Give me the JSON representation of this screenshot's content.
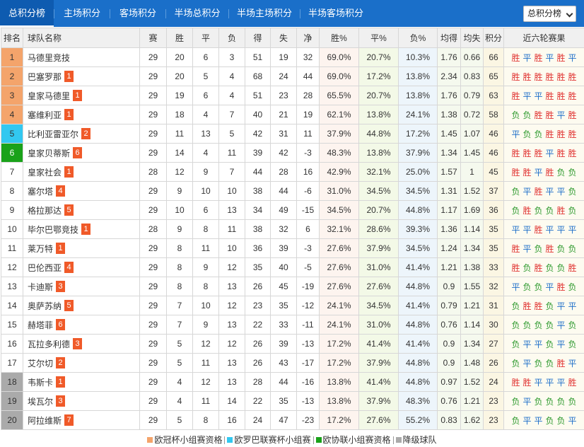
{
  "tabs": [
    "总积分榜",
    "主场积分",
    "客场积分",
    "半场总积分",
    "半场主场积分",
    "半场客场积分"
  ],
  "select": {
    "value": "总积分榜"
  },
  "headers": [
    "排名",
    "球队名称",
    "赛",
    "胜",
    "平",
    "负",
    "得",
    "失",
    "净",
    "胜%",
    "平%",
    "负%",
    "均得",
    "均失",
    "积分",
    "近六轮赛果"
  ],
  "results_map": {
    "W": "胜",
    "D": "平",
    "L": "负"
  },
  "colors": {
    "header_bar": "#1a6fc9",
    "ucl": "#f4a46b",
    "uel": "#32c8f0",
    "uecl": "#1aa21a",
    "relegation": "#aaaaaa",
    "badge": "#f05a29",
    "win": "#e0312f",
    "draw": "#1f6fc9",
    "loss": "#2e9a2e"
  },
  "rows": [
    {
      "rank": "1",
      "zone": "ucl",
      "team": "马德里竞技",
      "badge": "",
      "p": "29",
      "w": "20",
      "d": "6",
      "l": "3",
      "gf": "51",
      "ga": "19",
      "gd": "32",
      "wp": "69.0%",
      "dp": "20.7%",
      "lp": "10.3%",
      "avgf": "1.76",
      "avga": "0.66",
      "pts": "66",
      "recent": "WDWDWD"
    },
    {
      "rank": "2",
      "zone": "ucl",
      "team": "巴塞罗那",
      "badge": "1",
      "p": "29",
      "w": "20",
      "d": "5",
      "l": "4",
      "gf": "68",
      "ga": "24",
      "gd": "44",
      "wp": "69.0%",
      "dp": "17.2%",
      "lp": "13.8%",
      "avgf": "2.34",
      "avga": "0.83",
      "pts": "65",
      "recent": "WWWWWW"
    },
    {
      "rank": "3",
      "zone": "ucl",
      "team": "皇家马德里",
      "badge": "1",
      "p": "29",
      "w": "19",
      "d": "6",
      "l": "4",
      "gf": "51",
      "ga": "23",
      "gd": "28",
      "wp": "65.5%",
      "dp": "20.7%",
      "lp": "13.8%",
      "avgf": "1.76",
      "avga": "0.79",
      "pts": "63",
      "recent": "WDDWWW"
    },
    {
      "rank": "4",
      "zone": "ucl",
      "team": "塞维利亚",
      "badge": "1",
      "p": "29",
      "w": "18",
      "d": "4",
      "l": "7",
      "gf": "40",
      "ga": "21",
      "gd": "19",
      "wp": "62.1%",
      "dp": "13.8%",
      "lp": "24.1%",
      "avgf": "1.38",
      "avga": "0.72",
      "pts": "58",
      "recent": "LLWWDW"
    },
    {
      "rank": "5",
      "zone": "uel",
      "team": "比利亚雷亚尔",
      "badge": "2",
      "p": "29",
      "w": "11",
      "d": "13",
      "l": "5",
      "gf": "42",
      "ga": "31",
      "gd": "11",
      "wp": "37.9%",
      "dp": "44.8%",
      "lp": "17.2%",
      "avgf": "1.45",
      "avga": "1.07",
      "pts": "46",
      "recent": "DLLWWW"
    },
    {
      "rank": "6",
      "zone": "uecl",
      "team": "皇家贝蒂斯",
      "badge": "6",
      "p": "29",
      "w": "14",
      "d": "4",
      "l": "11",
      "gf": "39",
      "ga": "42",
      "gd": "-3",
      "wp": "48.3%",
      "dp": "13.8%",
      "lp": "37.9%",
      "avgf": "1.34",
      "avga": "1.45",
      "pts": "46",
      "recent": "WWWDWW"
    },
    {
      "rank": "7",
      "zone": "",
      "team": "皇家社会",
      "badge": "1",
      "p": "28",
      "w": "12",
      "d": "9",
      "l": "7",
      "gf": "44",
      "ga": "28",
      "gd": "16",
      "wp": "42.9%",
      "dp": "32.1%",
      "lp": "25.0%",
      "avgf": "1.57",
      "avga": "1",
      "pts": "45",
      "recent": "WWDWLL"
    },
    {
      "rank": "8",
      "zone": "",
      "team": "塞尔塔",
      "badge": "4",
      "p": "29",
      "w": "9",
      "d": "10",
      "l": "10",
      "gf": "38",
      "ga": "44",
      "gd": "-6",
      "wp": "31.0%",
      "dp": "34.5%",
      "lp": "34.5%",
      "avgf": "1.31",
      "avga": "1.52",
      "pts": "37",
      "recent": "LDWDDL"
    },
    {
      "rank": "9",
      "zone": "",
      "team": "格拉那达",
      "badge": "5",
      "p": "29",
      "w": "10",
      "d": "6",
      "l": "13",
      "gf": "34",
      "ga": "49",
      "gd": "-15",
      "wp": "34.5%",
      "dp": "20.7%",
      "lp": "44.8%",
      "avgf": "1.17",
      "avga": "1.69",
      "pts": "36",
      "recent": "LWLLWL"
    },
    {
      "rank": "10",
      "zone": "",
      "team": "毕尔巴鄂竞技",
      "badge": "1",
      "p": "28",
      "w": "9",
      "d": "8",
      "l": "11",
      "gf": "38",
      "ga": "32",
      "gd": "6",
      "wp": "32.1%",
      "dp": "28.6%",
      "lp": "39.3%",
      "avgf": "1.36",
      "avga": "1.14",
      "pts": "35",
      "recent": "DDWDDD"
    },
    {
      "rank": "11",
      "zone": "",
      "team": "莱万特",
      "badge": "1",
      "p": "29",
      "w": "8",
      "d": "11",
      "l": "10",
      "gf": "36",
      "ga": "39",
      "gd": "-3",
      "wp": "27.6%",
      "dp": "37.9%",
      "lp": "34.5%",
      "avgf": "1.24",
      "avga": "1.34",
      "pts": "35",
      "recent": "WDLWLL"
    },
    {
      "rank": "12",
      "zone": "",
      "team": "巴伦西亚",
      "badge": "4",
      "p": "29",
      "w": "8",
      "d": "9",
      "l": "12",
      "gf": "35",
      "ga": "40",
      "gd": "-5",
      "wp": "27.6%",
      "dp": "31.0%",
      "lp": "41.4%",
      "avgf": "1.21",
      "avga": "1.38",
      "pts": "33",
      "recent": "WLWLLW"
    },
    {
      "rank": "13",
      "zone": "",
      "team": "卡迪斯",
      "badge": "3",
      "p": "29",
      "w": "8",
      "d": "8",
      "l": "13",
      "gf": "26",
      "ga": "45",
      "gd": "-19",
      "wp": "27.6%",
      "dp": "27.6%",
      "lp": "44.8%",
      "avgf": "0.9",
      "avga": "1.55",
      "pts": "32",
      "recent": "DLLDWL"
    },
    {
      "rank": "14",
      "zone": "",
      "team": "奥萨苏纳",
      "badge": "5",
      "p": "29",
      "w": "7",
      "d": "10",
      "l": "12",
      "gf": "23",
      "ga": "35",
      "gd": "-12",
      "wp": "24.1%",
      "dp": "34.5%",
      "lp": "41.4%",
      "avgf": "0.79",
      "avga": "1.21",
      "pts": "31",
      "recent": "LWWLDD"
    },
    {
      "rank": "15",
      "zone": "",
      "team": "赫塔菲",
      "badge": "6",
      "p": "29",
      "w": "7",
      "d": "9",
      "l": "13",
      "gf": "22",
      "ga": "33",
      "gd": "-11",
      "wp": "24.1%",
      "dp": "31.0%",
      "lp": "44.8%",
      "avgf": "0.76",
      "avga": "1.14",
      "pts": "30",
      "recent": "LLLLDL"
    },
    {
      "rank": "16",
      "zone": "",
      "team": "瓦拉多利德",
      "badge": "3",
      "p": "29",
      "w": "5",
      "d": "12",
      "l": "12",
      "gf": "26",
      "ga": "39",
      "gd": "-13",
      "wp": "17.2%",
      "dp": "41.4%",
      "lp": "41.4%",
      "avgf": "0.9",
      "avga": "1.34",
      "pts": "27",
      "recent": "LDDLDL"
    },
    {
      "rank": "17",
      "zone": "",
      "team": "艾尔切",
      "badge": "2",
      "p": "29",
      "w": "5",
      "d": "11",
      "l": "13",
      "gf": "26",
      "ga": "43",
      "gd": "-17",
      "wp": "17.2%",
      "dp": "37.9%",
      "lp": "44.8%",
      "avgf": "0.9",
      "avga": "1.48",
      "pts": "26",
      "recent": "LDLLWD"
    },
    {
      "rank": "18",
      "zone": "rel",
      "team": "韦斯卡",
      "badge": "1",
      "p": "29",
      "w": "4",
      "d": "12",
      "l": "13",
      "gf": "28",
      "ga": "44",
      "gd": "-16",
      "wp": "13.8%",
      "dp": "41.4%",
      "lp": "44.8%",
      "avgf": "0.97",
      "avga": "1.52",
      "pts": "24",
      "recent": "WWDDDW"
    },
    {
      "rank": "19",
      "zone": "rel",
      "team": "埃瓦尔",
      "badge": "3",
      "p": "29",
      "w": "4",
      "d": "11",
      "l": "14",
      "gf": "22",
      "ga": "35",
      "gd": "-13",
      "wp": "13.8%",
      "dp": "37.9%",
      "lp": "48.3%",
      "avgf": "0.76",
      "avga": "1.21",
      "pts": "23",
      "recent": "LDLLLL"
    },
    {
      "rank": "20",
      "zone": "rel",
      "team": "阿拉维斯",
      "badge": "7",
      "p": "29",
      "w": "5",
      "d": "8",
      "l": "16",
      "gf": "24",
      "ga": "47",
      "gd": "-23",
      "wp": "17.2%",
      "dp": "27.6%",
      "lp": "55.2%",
      "avgf": "0.83",
      "avga": "1.62",
      "pts": "23",
      "recent": "LDDLLD"
    }
  ],
  "legend": [
    {
      "zone": "ucl",
      "label": "欧冠杯小组赛资格"
    },
    {
      "zone": "uel",
      "label": "欧罗巴联赛杯小组赛"
    },
    {
      "zone": "uecl",
      "label": "欧协联小组赛资格"
    },
    {
      "zone": "rel",
      "label": "降级球队"
    }
  ]
}
